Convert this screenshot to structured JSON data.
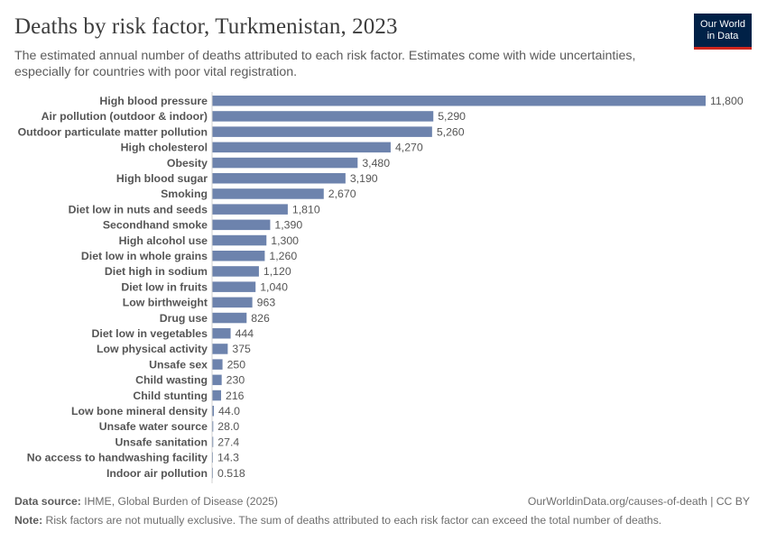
{
  "header": {
    "title": "Deaths by risk factor, Turkmenistan, 2023",
    "subtitle": "The estimated annual number of deaths attributed to each risk factor. Estimates come with wide uncertainties, especially for countries with poor vital registration."
  },
  "logo": {
    "line1": "Our World",
    "line2": "in Data"
  },
  "footer": {
    "source_label": "Data source:",
    "source_text": "IHME, Global Burden of Disease (2025)",
    "url": "OurWorldinData.org/causes-of-death | CC BY",
    "note_label": "Note:",
    "note_text": "Risk factors are not mutually exclusive. The sum of deaths attributed to each risk factor can exceed the total number of deaths."
  },
  "chart_data": {
    "type": "bar",
    "orientation": "horizontal",
    "bar_color": "#6d83ad",
    "grid": false,
    "categories": [
      "High blood pressure",
      "Air pollution (outdoor & indoor)",
      "Outdoor particulate matter pollution",
      "High cholesterol",
      "Obesity",
      "High blood sugar",
      "Smoking",
      "Diet low in nuts and seeds",
      "Secondhand smoke",
      "High alcohol use",
      "Diet low in whole grains",
      "Diet high in sodium",
      "Diet low in fruits",
      "Low birthweight",
      "Drug use",
      "Diet low in vegetables",
      "Low physical activity",
      "Unsafe sex",
      "Child wasting",
      "Child stunting",
      "Low bone mineral density",
      "Unsafe water source",
      "Unsafe sanitation",
      "No access to handwashing facility",
      "Indoor air pollution"
    ],
    "values": [
      11800,
      5290,
      5260,
      4270,
      3480,
      3190,
      2670,
      1810,
      1390,
      1300,
      1260,
      1120,
      1040,
      963,
      826,
      444,
      375,
      250,
      230,
      216,
      44.0,
      28.0,
      27.4,
      14.3,
      0.518
    ],
    "value_labels": [
      "11,800",
      "5,290",
      "5,260",
      "4,270",
      "3,480",
      "3,190",
      "2,670",
      "1,810",
      "1,390",
      "1,300",
      "1,260",
      "1,120",
      "1,040",
      "963",
      "826",
      "444",
      "375",
      "250",
      "230",
      "216",
      "44.0",
      "28.0",
      "27.4",
      "14.3",
      "0.518"
    ]
  }
}
